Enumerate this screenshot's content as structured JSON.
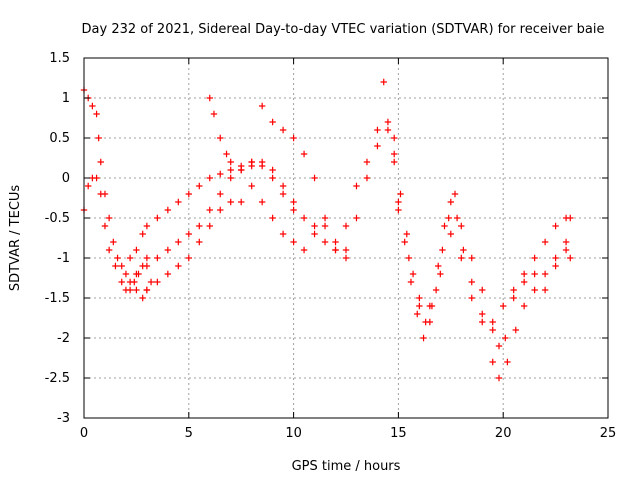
{
  "chart_data": {
    "type": "scatter",
    "title": "Day 232 of 2021, Sidereal Day-to-day VTEC variation (SDTVAR) for receiver baie",
    "xlabel": "GPS time / hours",
    "ylabel": "SDTVAR / TECUs",
    "xlim": [
      0,
      25
    ],
    "ylim": [
      -3,
      1.5
    ],
    "xticks": [
      0,
      5,
      10,
      15,
      20,
      25
    ],
    "yticks": [
      -3,
      -2.5,
      -2,
      -1.5,
      -1,
      -0.5,
      0,
      0.5,
      1,
      1.5
    ],
    "grid": true,
    "marker": "+",
    "color": "#ff0000",
    "series": [
      {
        "x": [
          0.0,
          0.2,
          0.4,
          0.6,
          0.8,
          1.0,
          1.2,
          1.5,
          1.8,
          2.0,
          2.2,
          2.5,
          2.8,
          3.0,
          3.2
        ],
        "y": [
          -0.4,
          -0.1,
          0.0,
          0.0,
          -0.2,
          -0.6,
          -0.9,
          -1.1,
          -1.3,
          -1.4,
          -1.3,
          -1.4,
          -1.5,
          -1.4,
          -1.3
        ]
      },
      {
        "x": [
          0.0,
          0.2,
          0.4,
          0.6,
          0.7,
          0.8,
          1.0,
          1.2,
          1.4,
          1.6,
          1.8,
          2.0,
          2.2,
          2.4,
          2.6,
          2.8,
          3.0
        ],
        "y": [
          1.1,
          1.0,
          0.9,
          0.8,
          0.5,
          0.2,
          -0.2,
          -0.5,
          -0.8,
          -1.0,
          -1.1,
          -1.2,
          -1.4,
          -1.3,
          -1.2,
          -1.1,
          -1.0
        ]
      },
      {
        "x": [
          2.2,
          2.5,
          2.8,
          3.0,
          3.5,
          4.0,
          4.5,
          5.0,
          5.5,
          6.0,
          6.5,
          7.0,
          7.5,
          8.0
        ],
        "y": [
          -1.0,
          -0.9,
          -0.7,
          -0.6,
          -0.5,
          -0.4,
          -0.3,
          -0.2,
          -0.1,
          0.0,
          0.05,
          0.1,
          0.15,
          0.2
        ]
      },
      {
        "x": [
          2.5,
          3.0,
          3.5,
          4.0,
          4.5,
          5.0,
          5.5,
          6.0,
          6.5,
          7.0,
          7.5,
          8.0,
          8.5,
          9.0,
          9.5,
          10.0
        ],
        "y": [
          -1.2,
          -1.1,
          -1.0,
          -0.9,
          -0.8,
          -0.7,
          -0.6,
          -0.4,
          -0.2,
          0.0,
          0.1,
          0.2,
          0.15,
          0.0,
          -0.2,
          -0.4
        ]
      },
      {
        "x": [
          3.0,
          3.5,
          4.0,
          4.5,
          5.0,
          5.5,
          6.0,
          6.5,
          7.0,
          7.5
        ],
        "y": [
          -1.4,
          -1.3,
          -1.2,
          -1.1,
          -1.0,
          -0.8,
          -0.6,
          -0.4,
          -0.3,
          -0.3
        ]
      },
      {
        "x": [
          6.0,
          6.2,
          6.5,
          6.8,
          7.0,
          7.5,
          8.0,
          8.5,
          9.0,
          9.5,
          10.0,
          10.5,
          11.0,
          11.5,
          12.0,
          12.5
        ],
        "y": [
          1.0,
          0.8,
          0.5,
          0.3,
          0.2,
          0.1,
          0.15,
          0.2,
          0.1,
          -0.1,
          -0.3,
          -0.5,
          -0.6,
          -0.8,
          -0.9,
          -0.9
        ]
      },
      {
        "x": [
          8.5,
          9.0,
          9.5,
          10.0,
          10.5,
          11.0,
          11.5,
          12.0,
          12.5,
          13.0,
          13.5,
          14.0,
          14.3
        ],
        "y": [
          0.9,
          0.7,
          0.6,
          0.5,
          0.3,
          0.0,
          -0.5,
          -0.9,
          -0.6,
          -0.1,
          0.2,
          0.6,
          1.2
        ]
      },
      {
        "x": [
          8.0,
          8.5,
          9.0,
          9.5,
          10.0,
          10.5,
          11.0,
          11.5,
          12.0,
          12.5,
          13.0,
          13.5,
          14.0,
          14.5,
          14.8
        ],
        "y": [
          -0.1,
          -0.3,
          -0.5,
          -0.7,
          -0.8,
          -0.9,
          -0.7,
          -0.6,
          -0.8,
          -1.0,
          -0.5,
          0.0,
          0.4,
          0.7,
          0.5
        ]
      },
      {
        "x": [
          14.5,
          14.8,
          15.0,
          15.3,
          15.6,
          15.9,
          16.2,
          16.5,
          16.8,
          17.1,
          17.4,
          17.7,
          18.0,
          18.5,
          19.0,
          19.5,
          19.8,
          20.1,
          20.5,
          21.0,
          21.5,
          22.0,
          22.5,
          23.0,
          23.2
        ],
        "y": [
          0.6,
          0.2,
          -0.3,
          -0.8,
          -1.3,
          -1.7,
          -2.0,
          -1.8,
          -1.4,
          -0.9,
          -0.5,
          -0.2,
          -0.6,
          -1.0,
          -1.4,
          -1.8,
          -2.1,
          -2.0,
          -1.5,
          -1.2,
          -1.0,
          -0.8,
          -0.6,
          -0.5,
          -0.5
        ]
      },
      {
        "x": [
          14.8,
          15.1,
          15.4,
          15.7,
          16.0,
          16.3,
          16.6,
          16.9,
          17.2,
          17.5,
          17.8,
          18.1,
          18.5,
          19.0,
          19.5,
          19.8,
          20.2,
          20.6,
          21.0,
          21.5,
          22.0,
          22.5,
          23.0,
          23.2
        ],
        "y": [
          0.3,
          -0.2,
          -0.7,
          -1.2,
          -1.6,
          -1.8,
          -1.6,
          -1.1,
          -0.6,
          -0.3,
          -0.5,
          -0.9,
          -1.3,
          -1.8,
          -2.3,
          -2.5,
          -2.3,
          -1.9,
          -1.6,
          -1.4,
          -1.2,
          -1.0,
          -0.9,
          -1.0
        ]
      },
      {
        "x": [
          15.0,
          15.5,
          16.0,
          16.5,
          17.0,
          17.5,
          18.0,
          18.5,
          19.0,
          19.5,
          20.0,
          20.5,
          21.0,
          21.5,
          22.0,
          22.5,
          23.0
        ],
        "y": [
          -0.4,
          -1.0,
          -1.5,
          -1.6,
          -1.2,
          -0.7,
          -1.0,
          -1.5,
          -1.7,
          -1.9,
          -1.6,
          -1.4,
          -1.3,
          -1.2,
          -1.4,
          -1.1,
          -0.8
        ]
      }
    ]
  }
}
